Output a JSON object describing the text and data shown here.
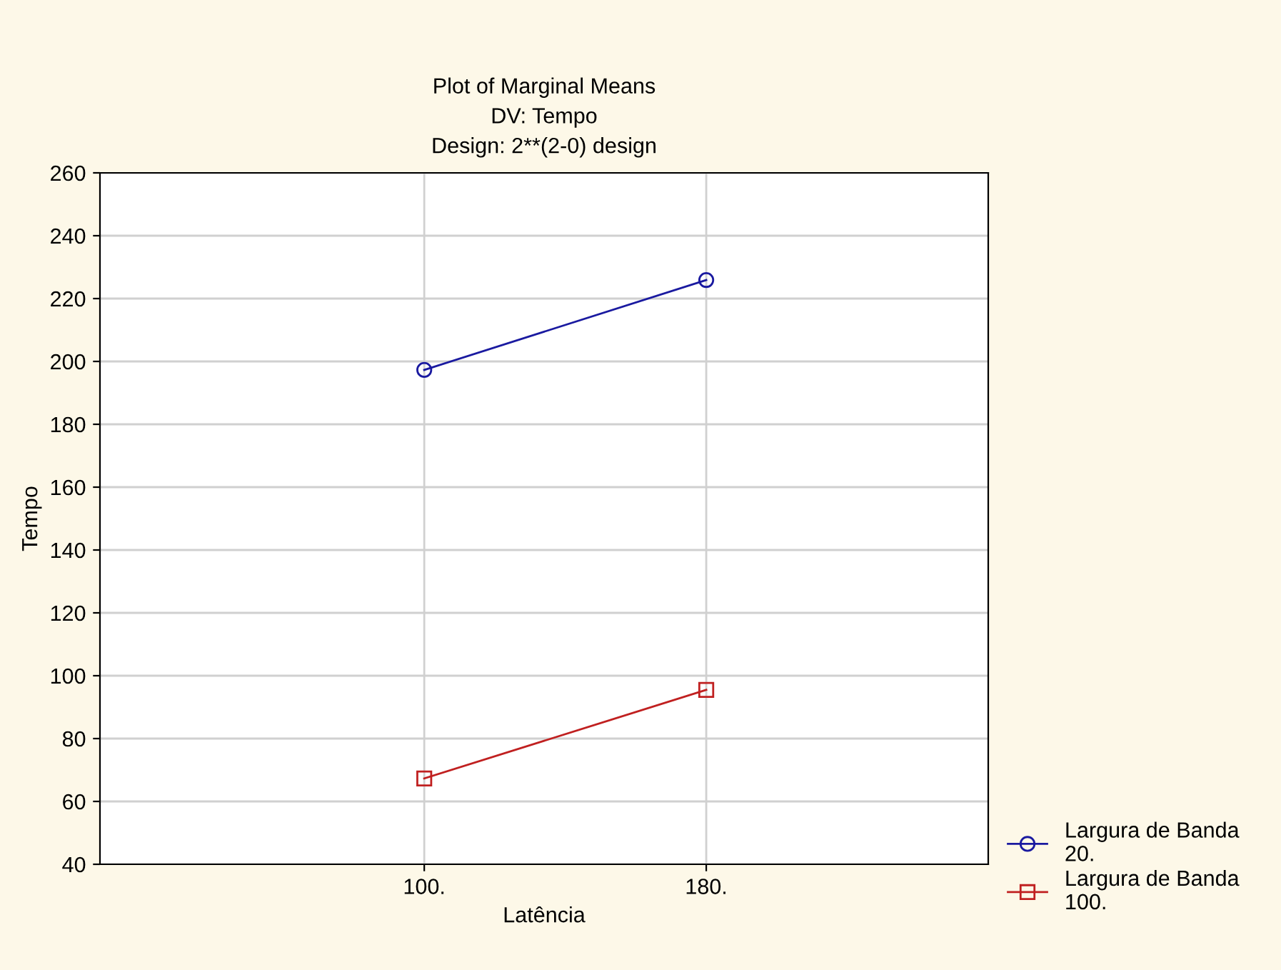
{
  "chart_data": {
    "type": "line",
    "title": "Plot of Marginal Means\nDV: Tempo\nDesign: 2**(2-0) design",
    "xlabel": "Latência",
    "ylabel": "Tempo",
    "categories": [
      "100.",
      "180."
    ],
    "series": [
      {
        "name": "Largura de Banda 20.",
        "color": "#1a1aa0",
        "marker": "circle",
        "values": [
          197.3,
          225.9
        ]
      },
      {
        "name": "Largura de Banda 100.",
        "color": "#c02020",
        "marker": "square",
        "values": [
          67.3,
          95.5
        ]
      }
    ],
    "ylim": [
      40,
      260
    ],
    "yticks": [
      40,
      60,
      80,
      100,
      120,
      140,
      160,
      180,
      200,
      220,
      240,
      260
    ],
    "grid": true,
    "legend": "bottom right",
    "line_style": "solid"
  }
}
